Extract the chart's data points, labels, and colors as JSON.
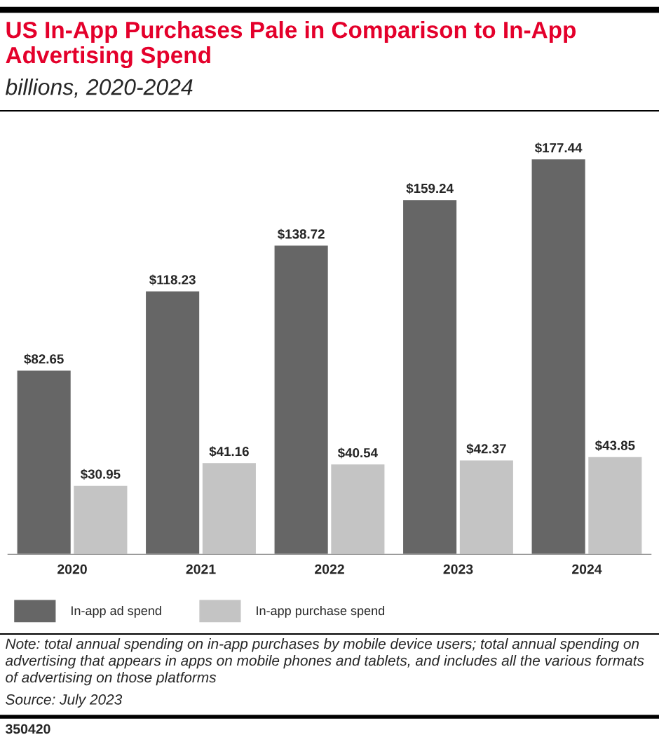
{
  "chart_data": {
    "type": "bar",
    "title": "US In-App Purchases Pale in Comparison to In-App Advertising Spend",
    "subtitle": "billions, 2020-2024",
    "categories": [
      "2020",
      "2021",
      "2022",
      "2023",
      "2024"
    ],
    "series": [
      {
        "name": "In-app ad spend",
        "color": "#666666",
        "values": [
          82.65,
          118.23,
          138.72,
          159.24,
          177.44
        ],
        "value_labels": [
          "$82.65",
          "$118.23",
          "$138.72",
          "$159.24",
          "$177.44"
        ]
      },
      {
        "name": "In-app purchase spend",
        "color": "#c4c4c4",
        "values": [
          30.95,
          41.16,
          40.54,
          42.37,
          43.85
        ],
        "value_labels": [
          "$30.95",
          "$41.16",
          "$40.54",
          "$42.37",
          "$43.85"
        ]
      }
    ],
    "legend": "bottom left",
    "grid": false,
    "annotations": [
      "Note: total annual spending on in-app purchases by mobile device users; total annual spending on advertising that appears in apps on mobile phones and tablets, and includes all the various formats of advertising on those platforms",
      "Source: July 2023",
      "350420"
    ]
  }
}
